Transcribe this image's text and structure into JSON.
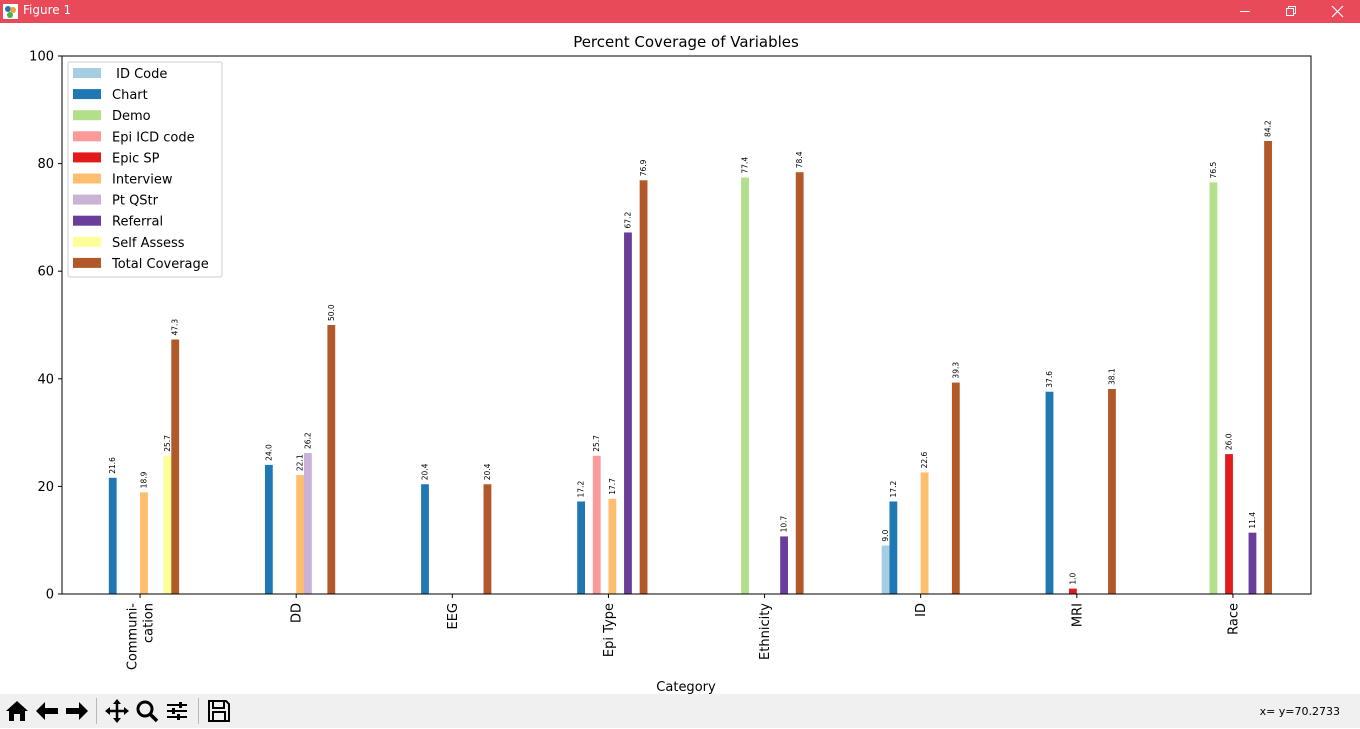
{
  "window": {
    "title": "Figure 1",
    "titlebar_color": "#e84a5a",
    "minimize_icon": "minimize-icon",
    "maximize_icon": "restore-icon",
    "close_icon": "close-icon"
  },
  "toolbar": {
    "buttons": [
      "home-icon",
      "back-arrow-icon",
      "forward-arrow-icon",
      "pan-icon",
      "zoom-icon",
      "configure-subplots-icon",
      "save-icon"
    ],
    "coords": "x= y=70.2733"
  },
  "chart_data": {
    "type": "bar",
    "title": "Percent Coverage of Variables",
    "xlabel": "Category",
    "ylabel": "",
    "ylim": [
      0,
      100
    ],
    "yticks": [
      0,
      20,
      40,
      60,
      80,
      100
    ],
    "grid": false,
    "legend_position": "top-left",
    "categories": [
      "Communi-\ncation",
      "DD",
      "EEG",
      "Epi Type",
      "Ethnicity",
      "ID",
      "MRI",
      "Race"
    ],
    "series": [
      {
        "name": " ID Code",
        "color": "#a6cee3",
        "values": [
          null,
          null,
          null,
          null,
          null,
          9.0,
          null,
          null
        ]
      },
      {
        "name": "Chart",
        "color": "#1f78b4",
        "values": [
          21.6,
          24.0,
          20.4,
          17.2,
          null,
          17.2,
          37.6,
          null
        ]
      },
      {
        "name": "Demo",
        "color": "#b2df8a",
        "values": [
          null,
          null,
          null,
          null,
          77.4,
          null,
          null,
          76.5
        ]
      },
      {
        "name": "Epi ICD code",
        "color": "#fb9a99",
        "values": [
          null,
          null,
          null,
          25.7,
          null,
          null,
          null,
          null
        ]
      },
      {
        "name": "Epic SP",
        "color": "#e31a1c",
        "values": [
          null,
          null,
          null,
          null,
          null,
          null,
          1.0,
          26.0
        ]
      },
      {
        "name": "Interview",
        "color": "#fdbf6f",
        "values": [
          18.9,
          22.1,
          null,
          17.7,
          null,
          22.6,
          null,
          null
        ]
      },
      {
        "name": "Pt QStr",
        "color": "#cab2d6",
        "values": [
          null,
          26.2,
          null,
          null,
          null,
          null,
          null,
          null
        ]
      },
      {
        "name": "Referral",
        "color": "#6a3d9a",
        "values": [
          null,
          null,
          null,
          67.2,
          10.7,
          null,
          null,
          11.4
        ]
      },
      {
        "name": "Self Assess",
        "color": "#ffff99",
        "values": [
          25.7,
          null,
          null,
          null,
          null,
          null,
          null,
          null
        ]
      },
      {
        "name": "Total Coverage",
        "color": "#b15928",
        "values": [
          47.3,
          50.0,
          20.4,
          76.9,
          78.4,
          39.3,
          38.1,
          84.2
        ]
      }
    ]
  }
}
